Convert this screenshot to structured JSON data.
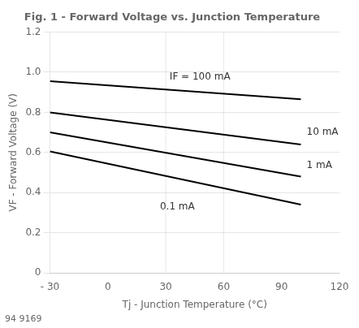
{
  "chart_data": {
    "type": "line",
    "title": "Fig. 1 - Forward Voltage vs. Junction Temperature",
    "subtitle": "94 9169",
    "xlabel": "Tj - Junction Temperature (°C)",
    "ylabel": "VF - Forward Voltage (V)",
    "x": [
      -30,
      100
    ],
    "series": [
      {
        "color": "#000000",
        "values": [
          0.955,
          0.865
        ]
      },
      {
        "color": "#000000",
        "values": [
          0.8,
          0.64
        ]
      },
      {
        "color": "#000000",
        "values": [
          0.7,
          0.48
        ]
      },
      {
        "color": "#000000",
        "values": [
          0.605,
          0.34
        ]
      }
    ],
    "xlim": [
      -30,
      120
    ],
    "ylim": [
      0,
      1.2
    ],
    "xticks": [
      {
        "value": -30,
        "label": "- 30"
      },
      0,
      30,
      60,
      90,
      120
    ],
    "yticks": [
      0,
      0.2,
      0.4,
      0.6,
      0.8,
      {
        "value": 1.0,
        "label": "1.0"
      },
      1.2
    ],
    "grid": "y",
    "vlines": [
      30,
      60
    ],
    "annotations": [
      {
        "text": "IF = 100 mA",
        "x": 32,
        "y": 0.975
      },
      {
        "text": "10 mA",
        "x": 103,
        "y": 0.7
      },
      {
        "text": "1 mA",
        "x": 103,
        "y": 0.535
      },
      {
        "text": "0.1 mA",
        "x": 27,
        "y": 0.33
      }
    ]
  }
}
